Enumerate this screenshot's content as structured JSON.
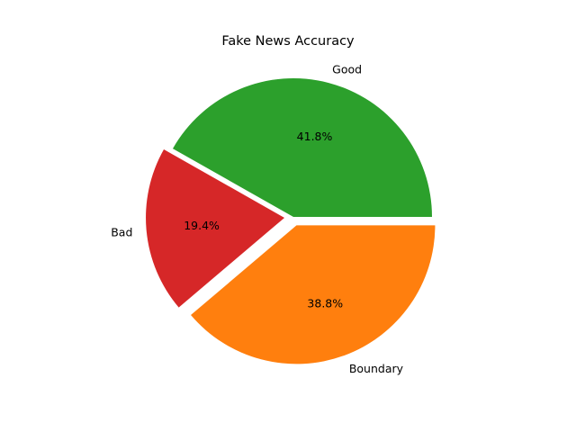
{
  "chart_data": {
    "type": "pie",
    "title": "Fake News Accuracy",
    "slices": [
      {
        "label": "Good",
        "percent_label": "41.8%",
        "value": 41.8,
        "color": "#2ca02c",
        "exploded": false
      },
      {
        "label": "Bad",
        "percent_label": "19.4%",
        "value": 19.4,
        "color": "#d62728",
        "exploded": true
      },
      {
        "label": "Boundary",
        "percent_label": "38.8%",
        "value": 38.8,
        "color": "#ff7f0e",
        "exploded": true
      }
    ],
    "start_angle_deg": 0,
    "direction": "counterclockwise",
    "legend": "none"
  }
}
